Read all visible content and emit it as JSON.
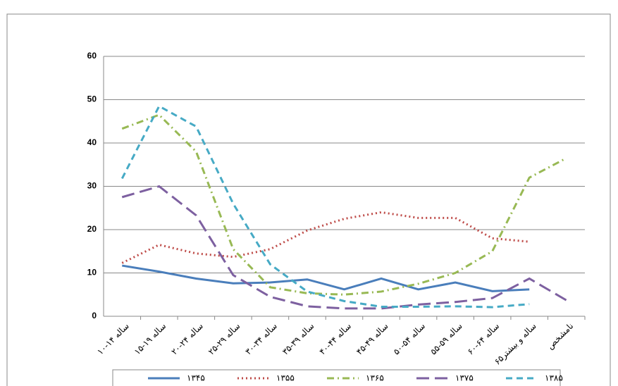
{
  "chart_data": {
    "type": "line",
    "categories": [
      "۱۰-۱۴ ساله",
      "۱۵-۱۹ ساله",
      "۲۰-۲۴ ساله",
      "۲۵-۲۹ ساله",
      "۳۰-۳۴ ساله",
      "۳۵-۳۹ ساله",
      "۴۰-۴۴ ساله",
      "۴۵-۴۹ ساله",
      "۵۰-۵۴ ساله",
      "۵۵-۵۹ ساله",
      "۶۰-۶۴ ساله",
      "۶۵ساله و بیشتر",
      "نامشخص"
    ],
    "series": [
      {
        "name": "۱۳۴۵",
        "color": "#4a7ebb",
        "dash": "solid",
        "values": [
          11.7,
          10.3,
          8.7,
          7.6,
          7.8,
          8.5,
          6.2,
          8.7,
          6.2,
          7.8,
          5.8,
          6.2,
          null
        ]
      },
      {
        "name": "۱۳۵۵",
        "color": "#be4b48",
        "dash": "dot",
        "values": [
          12.3,
          16.5,
          14.5,
          13.7,
          15.5,
          19.8,
          22.5,
          24,
          22.7,
          22.7,
          18,
          17.2,
          null
        ]
      },
      {
        "name": "۱۳۶۵",
        "color": "#98b954",
        "dash": "dashdot",
        "values": [
          43.3,
          46.5,
          38,
          15.5,
          6.7,
          5.3,
          5,
          5.7,
          7.5,
          10,
          15,
          32,
          36.5
        ]
      },
      {
        "name": "۱۳۷۵",
        "color": "#7d60a0",
        "dash": "longdash",
        "values": [
          27.5,
          30,
          23.3,
          9.5,
          4.5,
          2.3,
          1.8,
          1.8,
          2.7,
          3.3,
          4.2,
          8.7,
          3.7
        ]
      },
      {
        "name": "۱۳۸۵",
        "color": "#46aac5",
        "dash": "dash",
        "values": [
          31.8,
          48.5,
          43.8,
          26,
          12,
          5.7,
          3.5,
          2.2,
          2.2,
          2.3,
          2.1,
          2.8,
          null
        ]
      }
    ],
    "ylim": [
      0,
      60
    ],
    "yticks": [
      0,
      10,
      20,
      30,
      40,
      50,
      60
    ],
    "grid": true,
    "legend": "bottom"
  }
}
